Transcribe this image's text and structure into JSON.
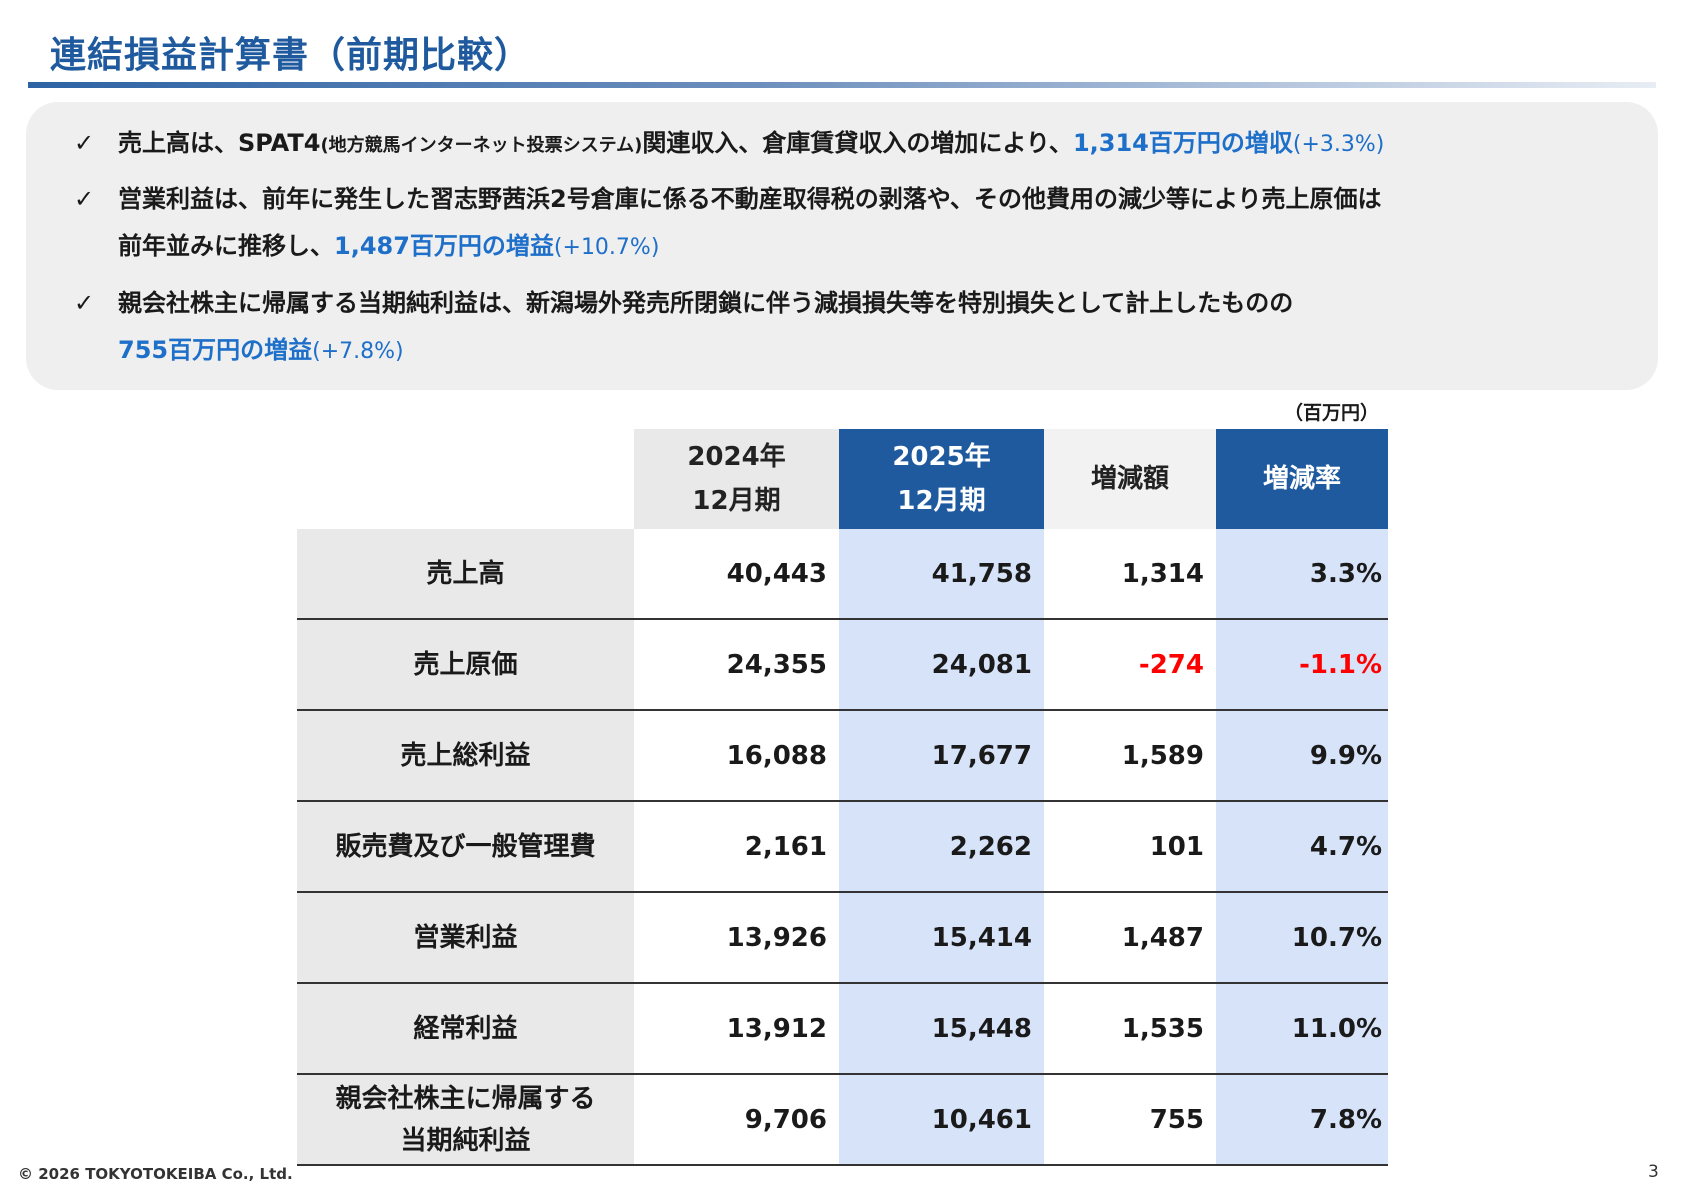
{
  "title": "連結損益計算書（前期比較）",
  "bullets": [
    {
      "check": "✓",
      "line1_a": "売上高は、SPAT4",
      "line1_small": "(地方競馬インターネット投票システム)",
      "line1_b": "関連収入、倉庫賃貸収入の増加により、",
      "highlight": "1,314百万円の増収",
      "highlight_paren": "(+3.3%)"
    },
    {
      "check": "✓",
      "line1": "営業利益は、前年に発生した習志野茜浜2号倉庫に係る不動産取得税の剥落や、その他費用の減少等により売上原価は",
      "line2": "前年並みに推移し、",
      "highlight": "1,487百万円の増益",
      "highlight_paren": "(+10.7%)"
    },
    {
      "check": "✓",
      "line1": "親会社株主に帰属する当期純利益は、新潟場外発売所閉鎖に伴う減損損失等を特別損失として計上したものの",
      "highlight": "755百万円の増益",
      "highlight_paren": "(+7.8%)"
    }
  ],
  "unit": "（百万円）",
  "table": {
    "headers": {
      "y2024_line1": "2024年",
      "y2024_line2": "12月期",
      "y2025_line1": "2025年",
      "y2025_line2": "12月期",
      "diff": "増減額",
      "rate": "増減率"
    },
    "rows": [
      {
        "label": "売上高",
        "label2": "",
        "y2024": "40,443",
        "y2025": "41,758",
        "diff": "1,314",
        "rate": "3.3%"
      },
      {
        "label": "売上原価",
        "label2": "",
        "y2024": "24,355",
        "y2025": "24,081",
        "diff": "-274",
        "rate": "-1.1%"
      },
      {
        "label": "売上総利益",
        "label2": "",
        "y2024": "16,088",
        "y2025": "17,677",
        "diff": "1,589",
        "rate": "9.9%"
      },
      {
        "label": "販売費及び一般管理費",
        "label2": "",
        "y2024": "2,161",
        "y2025": "2,262",
        "diff": "101",
        "rate": "4.7%"
      },
      {
        "label": "営業利益",
        "label2": "",
        "y2024": "13,926",
        "y2025": "15,414",
        "diff": "1,487",
        "rate": "10.7%"
      },
      {
        "label": "経常利益",
        "label2": "",
        "y2024": "13,912",
        "y2025": "15,448",
        "diff": "1,535",
        "rate": "11.0%"
      },
      {
        "label": "親会社株主に帰属する",
        "label2": "当期純利益",
        "y2024": "9,706",
        "y2025": "10,461",
        "diff": "755",
        "rate": "7.8%"
      }
    ]
  },
  "colors": {
    "brand_blue": "#1f5a9e",
    "highlight_blue": "#1d6fc9",
    "negative_red": "#ff0000",
    "light_blue_column": "#d6e3f8"
  },
  "footer": {
    "copyright": "© 2026 TOKYOTOKEIBA Co., Ltd.",
    "page": "3"
  }
}
